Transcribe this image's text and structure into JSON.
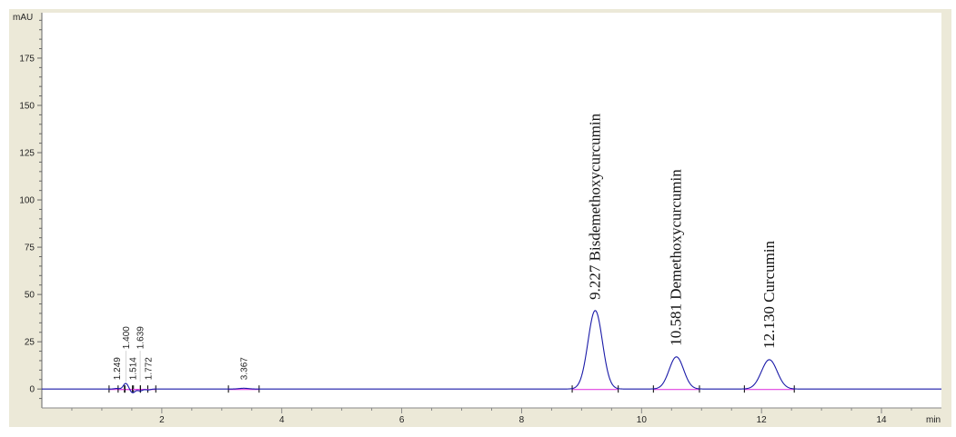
{
  "chart_data": {
    "type": "line",
    "ylabel": "mAU",
    "xlabel": "min",
    "xlim": [
      0,
      15
    ],
    "ylim": [
      -10,
      199
    ],
    "xticks": [
      2,
      4,
      6,
      8,
      10,
      12,
      14
    ],
    "yticks": [
      0,
      25,
      50,
      75,
      100,
      125,
      150,
      175
    ],
    "grid": false,
    "colors": {
      "trace": "#1a1aa8",
      "baseline": "#e040e0",
      "background": "#ece9d8"
    },
    "peaks": [
      {
        "rt": 1.249,
        "label": "1.249",
        "height": 0.3,
        "width": 0.04
      },
      {
        "rt": 1.4,
        "label": "1.400",
        "height": 3,
        "width": 0.04
      },
      {
        "rt": 1.514,
        "label": "1.514",
        "height": -2,
        "width": 0.04
      },
      {
        "rt": 1.639,
        "label": "1.639",
        "height": -1,
        "width": 0.04
      },
      {
        "rt": 1.772,
        "label": "1.772",
        "height": -0.5,
        "width": 0.04
      },
      {
        "rt": 3.367,
        "label": "3.367",
        "height": 0.4,
        "width": 0.08
      },
      {
        "rt": 9.227,
        "label": "9.227 Bisdemethoxycurcumin",
        "height": 41.5,
        "width": 0.12
      },
      {
        "rt": 10.581,
        "label": "10.581 Demethoxycurcumin",
        "height": 17,
        "width": 0.12
      },
      {
        "rt": 12.13,
        "label": "12.130 Curcumin",
        "height": 15.5,
        "width": 0.13
      }
    ]
  }
}
